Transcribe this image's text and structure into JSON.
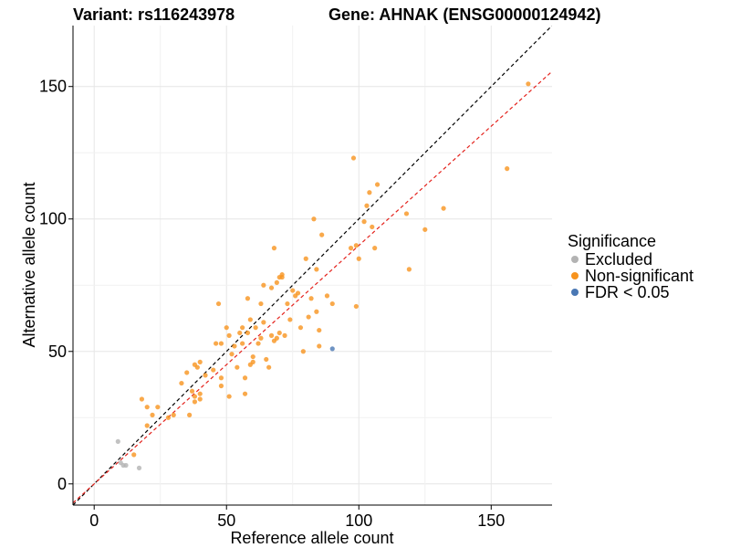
{
  "chart_data": {
    "type": "scatter",
    "title_left": "Variant: rs116243978",
    "title_right": "Gene: AHNAK (ENSG00000124942)",
    "xlabel": "Reference allele count",
    "ylabel": "Alternative allele count",
    "xlim": [
      -8,
      173
    ],
    "ylim": [
      -8,
      173
    ],
    "x_ticks": [
      0,
      50,
      100,
      150
    ],
    "y_ticks": [
      0,
      50,
      100,
      150
    ],
    "grid": true,
    "legend": {
      "title": "Significance",
      "placement": "right",
      "entries": [
        {
          "label": "Excluded",
          "color": "#b3b3b3"
        },
        {
          "label": "Non-significant",
          "color": "#f7931e"
        },
        {
          "label": "FDR < 0.05",
          "color": "#4a78b4"
        }
      ]
    },
    "reference_lines": [
      {
        "name": "identity",
        "slope": 1.0,
        "intercept": 0,
        "color": "#000000",
        "style": "dashed"
      },
      {
        "name": "fit",
        "slope": 0.9,
        "intercept": 0,
        "color": "#e4221c",
        "style": "dashed"
      }
    ],
    "series": [
      {
        "group": "Excluded",
        "color": "#b3b3b3",
        "points": [
          [
            9,
            16
          ],
          [
            10,
            8
          ],
          [
            11,
            7
          ],
          [
            12,
            7
          ],
          [
            17,
            6
          ]
        ]
      },
      {
        "group": "Non-significant",
        "color": "#f7931e",
        "points": [
          [
            15,
            11
          ],
          [
            18,
            32
          ],
          [
            20,
            22
          ],
          [
            20,
            29
          ],
          [
            22,
            26
          ],
          [
            24,
            29
          ],
          [
            28,
            25
          ],
          [
            30,
            26
          ],
          [
            33,
            38
          ],
          [
            35,
            42
          ],
          [
            36,
            26
          ],
          [
            37,
            35
          ],
          [
            38,
            31
          ],
          [
            38,
            33
          ],
          [
            38,
            45
          ],
          [
            39,
            44
          ],
          [
            40,
            46
          ],
          [
            40,
            34
          ],
          [
            40,
            32
          ],
          [
            42,
            41
          ],
          [
            45,
            43
          ],
          [
            46,
            53
          ],
          [
            47,
            68
          ],
          [
            48,
            53
          ],
          [
            48,
            40
          ],
          [
            48,
            37
          ],
          [
            50,
            59
          ],
          [
            51,
            56
          ],
          [
            51,
            33
          ],
          [
            52,
            49
          ],
          [
            53,
            52
          ],
          [
            54,
            44
          ],
          [
            55,
            57
          ],
          [
            56,
            59
          ],
          [
            56,
            53
          ],
          [
            57,
            40
          ],
          [
            57,
            34
          ],
          [
            58,
            70
          ],
          [
            58,
            57
          ],
          [
            59,
            45
          ],
          [
            59,
            62
          ],
          [
            60,
            46
          ],
          [
            60,
            48
          ],
          [
            61,
            59
          ],
          [
            62,
            53
          ],
          [
            63,
            55
          ],
          [
            63,
            68
          ],
          [
            64,
            61
          ],
          [
            64,
            75
          ],
          [
            65,
            47
          ],
          [
            66,
            44
          ],
          [
            67,
            56
          ],
          [
            67,
            74
          ],
          [
            68,
            89
          ],
          [
            68,
            54
          ],
          [
            69,
            76
          ],
          [
            69,
            55
          ],
          [
            70,
            78
          ],
          [
            70,
            57
          ],
          [
            71,
            78
          ],
          [
            71,
            79
          ],
          [
            72,
            56
          ],
          [
            73,
            68
          ],
          [
            74,
            62
          ],
          [
            75,
            73
          ],
          [
            76,
            71
          ],
          [
            77,
            72
          ],
          [
            78,
            59
          ],
          [
            79,
            50
          ],
          [
            80,
            85
          ],
          [
            81,
            63
          ],
          [
            82,
            70
          ],
          [
            83,
            100
          ],
          [
            84,
            81
          ],
          [
            84,
            65
          ],
          [
            85,
            58
          ],
          [
            85,
            52
          ],
          [
            86,
            94
          ],
          [
            88,
            71
          ],
          [
            90,
            68
          ],
          [
            97,
            89
          ],
          [
            98,
            123
          ],
          [
            99,
            90
          ],
          [
            99,
            67
          ],
          [
            100,
            85
          ],
          [
            102,
            99
          ],
          [
            103,
            105
          ],
          [
            104,
            110
          ],
          [
            105,
            97
          ],
          [
            106,
            89
          ],
          [
            107,
            113
          ],
          [
            118,
            102
          ],
          [
            119,
            81
          ],
          [
            125,
            96
          ],
          [
            132,
            104
          ],
          [
            156,
            119
          ],
          [
            164,
            151
          ]
        ]
      },
      {
        "group": "FDR < 0.05",
        "color": "#4a78b4",
        "points": [
          [
            90,
            51
          ]
        ]
      }
    ]
  }
}
